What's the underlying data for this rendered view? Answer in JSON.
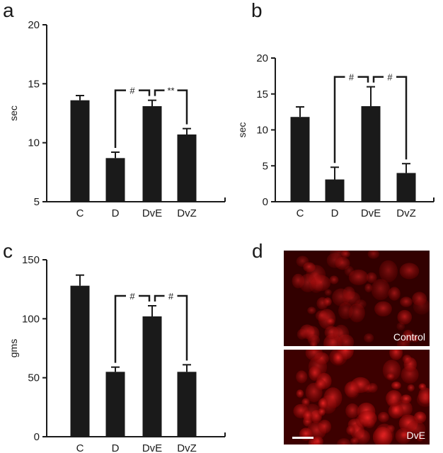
{
  "colors": {
    "bar": "#1a1a1a",
    "axis": "#1a1a1a",
    "micrograph_bg": "#120000",
    "micrograph_cell": "#e31212",
    "micrograph_divider": "#ffffff"
  },
  "chart_data": [
    {
      "panel": "a",
      "type": "bar",
      "categories": [
        "C",
        "D",
        "DvE",
        "DvZ"
      ],
      "values": [
        13.6,
        8.7,
        13.1,
        10.7
      ],
      "errors": [
        0.4,
        0.5,
        0.5,
        0.5
      ],
      "ylabel": "sec",
      "ylim": [
        5,
        20
      ],
      "yticks": [
        5,
        10,
        15,
        20
      ],
      "significance": [
        {
          "from": 1,
          "to": 2,
          "label": "#"
        },
        {
          "from": 2,
          "to": 3,
          "label": "**"
        }
      ]
    },
    {
      "panel": "b",
      "type": "bar",
      "categories": [
        "C",
        "D",
        "DvE",
        "DvZ"
      ],
      "values": [
        11.8,
        3.1,
        13.3,
        4.0
      ],
      "errors": [
        1.4,
        1.7,
        2.7,
        1.3
      ],
      "ylabel": "sec",
      "ylim": [
        0,
        20
      ],
      "yticks": [
        0,
        5,
        10,
        15,
        20
      ],
      "significance": [
        {
          "from": 1,
          "to": 2,
          "label": "#"
        },
        {
          "from": 2,
          "to": 3,
          "label": "#"
        }
      ]
    },
    {
      "panel": "c",
      "type": "bar",
      "categories": [
        "C",
        "D",
        "DvE",
        "DvZ"
      ],
      "values": [
        128,
        55,
        102,
        55
      ],
      "errors": [
        9,
        4,
        9,
        6
      ],
      "ylabel": "gms",
      "ylim": [
        0,
        150
      ],
      "yticks": [
        0,
        50,
        100,
        150
      ],
      "significance": [
        {
          "from": 1,
          "to": 2,
          "label": "#"
        },
        {
          "from": 2,
          "to": 3,
          "label": "#"
        }
      ]
    }
  ],
  "micrograph": {
    "panel": "d",
    "top_label": "Control",
    "bottom_label": "DvE"
  }
}
